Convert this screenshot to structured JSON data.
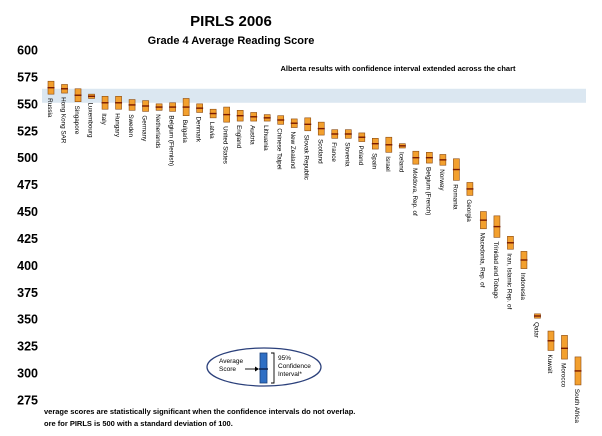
{
  "chart_data": {
    "type": "scatter",
    "title": "PIRLS 2006",
    "subtitle": "Grade 4 Average Reading Score",
    "annotation": "Alberta results with confidence interval extended across the chart",
    "band": {
      "label": "Alberta",
      "low": 551,
      "high": 564,
      "color": "#dbe7f1"
    },
    "ylim": [
      275,
      600
    ],
    "yticks": [
      275,
      300,
      325,
      350,
      375,
      400,
      425,
      450,
      475,
      500,
      525,
      550,
      575,
      600
    ],
    "legend": {
      "left": "Average Score",
      "right": "95% Confidence Interval*"
    },
    "footnotes": [
      "verage scores are statistically significant when the confidence intervals do not overlap.",
      "ore for PIRLS is 500 with a standard deviation of 100."
    ],
    "series": [
      {
        "name": "Russia",
        "value": 565,
        "low": 559,
        "high": 571
      },
      {
        "name": "Hong Kong SAR",
        "value": 564,
        "low": 560,
        "high": 568
      },
      {
        "name": "Singapore",
        "value": 558,
        "low": 552,
        "high": 564
      },
      {
        "name": "Luxembourg",
        "value": 557,
        "low": 555,
        "high": 559
      },
      {
        "name": "Italy",
        "value": 551,
        "low": 545,
        "high": 557
      },
      {
        "name": "Hungary",
        "value": 551,
        "low": 545,
        "high": 557
      },
      {
        "name": "Sweden",
        "value": 549,
        "low": 544,
        "high": 554
      },
      {
        "name": "Germany",
        "value": 548,
        "low": 543,
        "high": 553
      },
      {
        "name": "Netherlands",
        "value": 547,
        "low": 544,
        "high": 550
      },
      {
        "name": "Belgium (Flemish)",
        "value": 547,
        "low": 543,
        "high": 551
      },
      {
        "name": "Bulgaria",
        "value": 547,
        "low": 539,
        "high": 555
      },
      {
        "name": "Denmark",
        "value": 546,
        "low": 542,
        "high": 550
      },
      {
        "name": "Latvia",
        "value": 541,
        "low": 537,
        "high": 545
      },
      {
        "name": "United States",
        "value": 540,
        "low": 533,
        "high": 547
      },
      {
        "name": "England",
        "value": 539,
        "low": 534,
        "high": 544
      },
      {
        "name": "Austria",
        "value": 538,
        "low": 534,
        "high": 542
      },
      {
        "name": "Lithuania",
        "value": 537,
        "low": 534,
        "high": 540
      },
      {
        "name": "Chinese Taipei",
        "value": 535,
        "low": 531,
        "high": 539
      },
      {
        "name": "New Zealand",
        "value": 532,
        "low": 528,
        "high": 536
      },
      {
        "name": "Slovak Republic",
        "value": 531,
        "low": 525,
        "high": 537
      },
      {
        "name": "Scotland",
        "value": 527,
        "low": 521,
        "high": 533
      },
      {
        "name": "France",
        "value": 522,
        "low": 518,
        "high": 526
      },
      {
        "name": "Slovenia",
        "value": 522,
        "low": 518,
        "high": 526
      },
      {
        "name": "Poland",
        "value": 519,
        "low": 515,
        "high": 523
      },
      {
        "name": "Spain",
        "value": 513,
        "low": 508,
        "high": 518
      },
      {
        "name": "Israel",
        "value": 512,
        "low": 505,
        "high": 519
      },
      {
        "name": "Iceland",
        "value": 511,
        "low": 509,
        "high": 513
      },
      {
        "name": "Moldova, Rep. of",
        "value": 500,
        "low": 494,
        "high": 506
      },
      {
        "name": "Belgium (French)",
        "value": 500,
        "low": 495,
        "high": 505
      },
      {
        "name": "Norway",
        "value": 498,
        "low": 493,
        "high": 503
      },
      {
        "name": "Romania",
        "value": 489,
        "low": 479,
        "high": 499
      },
      {
        "name": "Georgia",
        "value": 471,
        "low": 465,
        "high": 477
      },
      {
        "name": "Macedonia, Rep. of",
        "value": 442,
        "low": 434,
        "high": 450
      },
      {
        "name": "Trinidad and Tobago",
        "value": 436,
        "low": 426,
        "high": 446
      },
      {
        "name": "Iran, Islamic Rep. of",
        "value": 421,
        "low": 415,
        "high": 427
      },
      {
        "name": "Indonesia",
        "value": 405,
        "low": 397,
        "high": 413
      },
      {
        "name": "Qatar",
        "value": 353,
        "low": 351,
        "high": 355
      },
      {
        "name": "Kuwait",
        "value": 330,
        "low": 321,
        "high": 339
      },
      {
        "name": "Morocco",
        "value": 323,
        "low": 313,
        "high": 335
      },
      {
        "name": "South Africa",
        "value": 302,
        "low": 289,
        "high": 315
      }
    ],
    "colors": {
      "fill": "#f3a02e",
      "stroke": "#8a4a12",
      "mean": "#7a1a00",
      "band": "#dbe7f1"
    }
  }
}
